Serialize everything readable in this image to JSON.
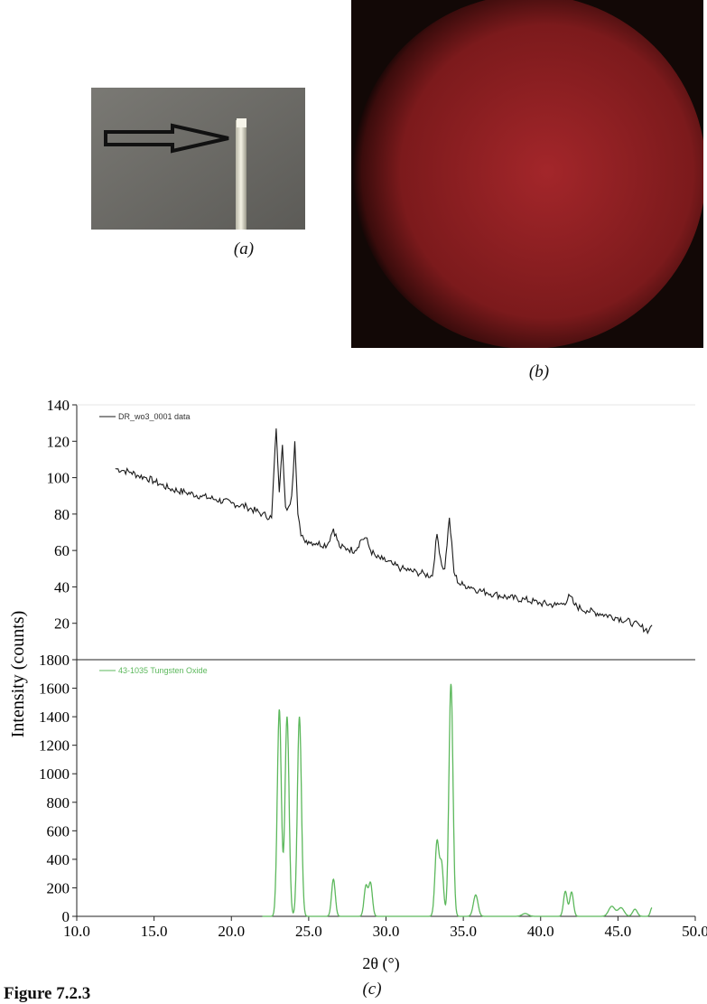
{
  "panel_captions": {
    "a": "(a)",
    "b": "(b)",
    "c": "(c)"
  },
  "figure_label": "Figure 7.2.3",
  "photo_a": {
    "description_icon": "arrow-pointing-at-crystal-tip"
  },
  "photo_b": {
    "background_color": "#140a08",
    "ring_color": "#ff4a3a"
  },
  "chart_data": [
    {
      "type": "line",
      "xlabel": "2θ (°)",
      "ylabel": "Intensity (counts)",
      "xlim": [
        10.0,
        50.0
      ],
      "ylim": [
        0,
        140
      ],
      "yticks": [
        20,
        40,
        60,
        80,
        100,
        120,
        140
      ],
      "legend": "top-left",
      "series": [
        {
          "name": "DR_wo3_0001 data",
          "color": "#1a1a1a",
          "x": [
            12.5,
            13.0,
            13.5,
            14.0,
            14.5,
            15.0,
            15.5,
            16.0,
            17.0,
            18.0,
            19.0,
            20.0,
            21.0,
            22.0,
            22.6,
            22.9,
            23.1,
            23.3,
            23.5,
            23.7,
            23.9,
            24.1,
            24.3,
            24.5,
            24.7,
            25.0,
            25.5,
            26.2,
            26.6,
            27.0,
            27.5,
            28.0,
            28.4,
            28.7,
            29.0,
            29.4,
            29.8,
            30.5,
            31.0,
            31.5,
            32.0,
            32.5,
            33.0,
            33.3,
            33.6,
            33.8,
            34.1,
            34.4,
            34.7,
            35.0,
            35.5,
            36.0,
            36.5,
            37.0,
            38.0,
            39.0,
            40.0,
            41.0,
            41.5,
            41.9,
            42.2,
            42.6,
            43.0,
            44.0,
            45.0,
            46.0,
            46.5,
            47.0,
            47.2
          ],
          "values": [
            105,
            104,
            103,
            101,
            100,
            98,
            96,
            94,
            92,
            90,
            88,
            86,
            84,
            80,
            78,
            127,
            92,
            118,
            84,
            84,
            90,
            120,
            80,
            68,
            66,
            65,
            64,
            63,
            72,
            62,
            61,
            60,
            66,
            67,
            60,
            56,
            55,
            52,
            50,
            49,
            48,
            47,
            46,
            69,
            52,
            50,
            78,
            48,
            42,
            41,
            40,
            38,
            37,
            36,
            34,
            33,
            31,
            30,
            31,
            35,
            30,
            28,
            27,
            25,
            23,
            20,
            18,
            16,
            19
          ]
        },
        {
          "name": "",
          "color": "#1a1a1a",
          "x": [],
          "values": []
        }
      ]
    },
    {
      "type": "line",
      "xlabel": "2θ (°)",
      "ylabel": "Intensity (counts)",
      "xlim": [
        10.0,
        50.0
      ],
      "ylim": [
        0,
        1800
      ],
      "xticks": [
        "10.0",
        "15.0",
        "20.0",
        "25.0",
        "30.0",
        "35.0",
        "40.0",
        "45.0",
        "50.0"
      ],
      "yticks": [
        0,
        200,
        400,
        600,
        800,
        1000,
        1200,
        1400,
        1600,
        1800
      ],
      "legend": "top-left",
      "series": [
        {
          "name": "43-1035 Tungsten Oxide",
          "color": "#5cb85c",
          "peaks": [
            [
              23.1,
              1450,
              0.13
            ],
            [
              23.6,
              1400,
              0.13
            ],
            [
              24.4,
              1400,
              0.13
            ],
            [
              26.6,
              260,
              0.12
            ],
            [
              28.7,
              210,
              0.12
            ],
            [
              29.0,
              230,
              0.12
            ],
            [
              33.3,
              520,
              0.13
            ],
            [
              33.6,
              350,
              0.12
            ],
            [
              34.2,
              1630,
              0.13
            ],
            [
              35.8,
              150,
              0.15
            ],
            [
              39.0,
              20,
              0.2
            ],
            [
              41.6,
              175,
              0.12
            ],
            [
              42.0,
              170,
              0.12
            ],
            [
              44.6,
              70,
              0.2
            ],
            [
              45.2,
              60,
              0.2
            ],
            [
              46.1,
              50,
              0.15
            ],
            [
              47.2,
              60,
              0.1
            ]
          ]
        }
      ]
    }
  ]
}
